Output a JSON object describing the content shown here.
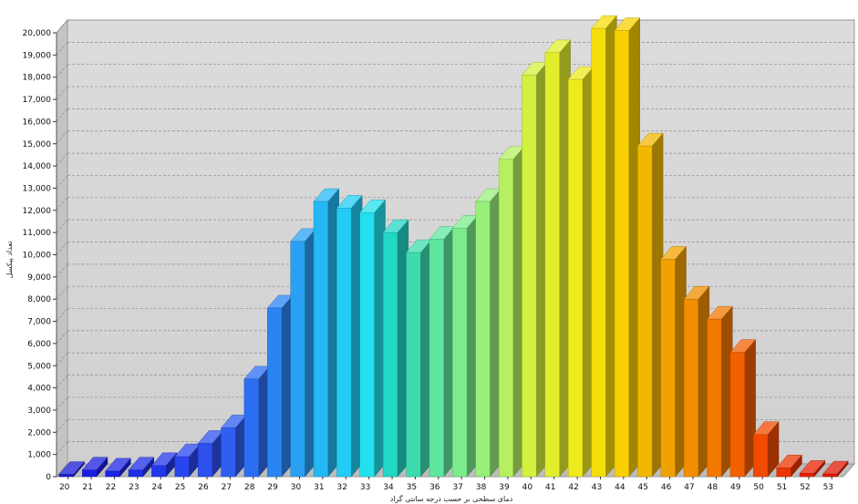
{
  "chart_data": {
    "type": "bar",
    "style": "3d",
    "xlabel": "دمای سطحی بر حسب درجه سانتی گراد",
    "ylabel": "تعداد پیکسل",
    "ylim": [
      0,
      20000
    ],
    "ytick_step": 1000,
    "grid": true,
    "categories": [
      "20",
      "21",
      "22",
      "23",
      "24",
      "25",
      "26",
      "27",
      "28",
      "29",
      "30",
      "31",
      "32",
      "33",
      "34",
      "35",
      "36",
      "37",
      "38",
      "39",
      "40",
      "41",
      "42",
      "43",
      "44",
      "45",
      "46",
      "47",
      "48",
      "49",
      "50",
      "51",
      "52",
      "53"
    ],
    "ytick_labels": [
      "0",
      "1,000",
      "2,000",
      "3,000",
      "4,000",
      "5,000",
      "6,000",
      "7,000",
      "8,000",
      "9,000",
      "10,000",
      "11,000",
      "12,000",
      "13,000",
      "14,000",
      "15,000",
      "16,000",
      "17,000",
      "18,000",
      "19,000",
      "20,000"
    ],
    "values": [
      100,
      300,
      250,
      300,
      500,
      900,
      1500,
      2200,
      4400,
      7600,
      10600,
      12400,
      12100,
      11900,
      11000,
      10100,
      10700,
      11200,
      12400,
      14300,
      18100,
      19100,
      17900,
      20200,
      20100,
      14900,
      9800,
      8000,
      7100,
      5600,
      1900,
      400,
      150,
      120
    ],
    "colors": [
      "#1a1ad8",
      "#1b1ee0",
      "#1c25e4",
      "#1e2ee8",
      "#2238ec",
      "#2945ef",
      "#2d50ef",
      "#2f5ef0",
      "#2c6ef2",
      "#2a84f4",
      "#2aa0f5",
      "#24b8f5",
      "#22ccf4",
      "#22e0ee",
      "#22d7c6",
      "#3ddcaf",
      "#5ee6a0",
      "#7cec8c",
      "#98ef7a",
      "#b6f060",
      "#d2f03e",
      "#e2ee2c",
      "#eeea1e",
      "#f6de0a",
      "#f8d000",
      "#f2b800",
      "#f2a200",
      "#f28e00",
      "#f27800",
      "#f26000",
      "#f24a00",
      "#ec3400",
      "#e62200",
      "#e01800"
    ]
  }
}
